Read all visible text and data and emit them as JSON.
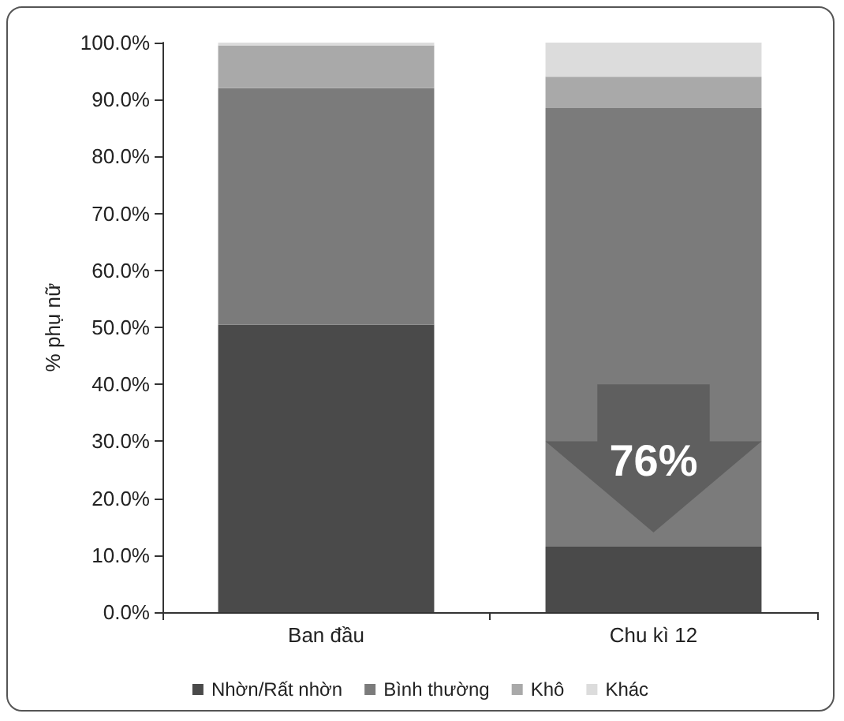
{
  "chart_data": {
    "type": "bar",
    "stacked": true,
    "ylabel": "% phụ nữ",
    "categories": [
      "Ban đầu",
      "Chu kì 12"
    ],
    "series": [
      {
        "name": "Nhờn/Rất nhờn",
        "color": "#4a4a4a",
        "values": [
          50.5,
          11.5
        ]
      },
      {
        "name": "Bình thường",
        "color": "#7b7b7b",
        "values": [
          41.5,
          77
        ]
      },
      {
        "name": "Khô",
        "color": "#a9a9a9",
        "values": [
          7.5,
          5.5
        ]
      },
      {
        "name": "Khác",
        "color": "#dcdcdc",
        "values": [
          0.5,
          6
        ]
      }
    ],
    "ylim": [
      0,
      100
    ],
    "yticks": [
      {
        "value": 0,
        "label": "0.0%"
      },
      {
        "value": 10,
        "label": "10.0%"
      },
      {
        "value": 20,
        "label": "20.0%"
      },
      {
        "value": 30,
        "label": "30.0%"
      },
      {
        "value": 40,
        "label": "40.0%"
      },
      {
        "value": 50,
        "label": "50.0%"
      },
      {
        "value": 60,
        "label": "60.0%"
      },
      {
        "value": 70,
        "label": "70.0%"
      },
      {
        "value": 80,
        "label": "80.0%"
      },
      {
        "value": 90,
        "label": "90.0%"
      },
      {
        "value": 100,
        "label": "100.0%"
      }
    ],
    "grid": false,
    "legend": "bottom",
    "annotations": [
      "76%"
    ]
  }
}
